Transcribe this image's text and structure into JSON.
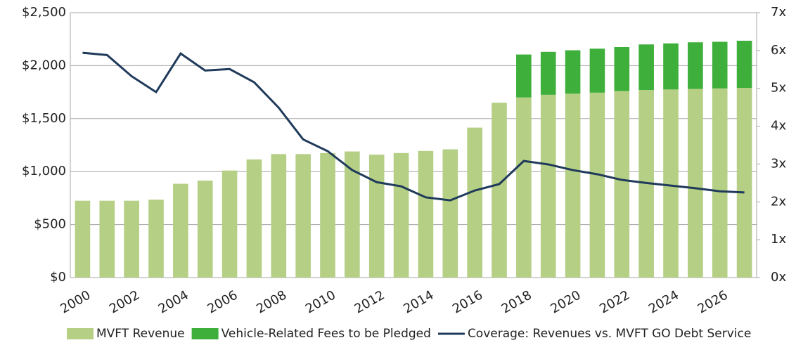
{
  "chart_data": {
    "type": "bar",
    "categories": [
      "2000",
      null,
      "2002",
      null,
      "2004",
      null,
      "2006",
      null,
      "2008",
      null,
      "2010",
      null,
      "2012",
      null,
      "2014",
      null,
      "2016",
      null,
      "2018",
      null,
      "2020",
      null,
      "2022",
      null,
      "2024",
      null,
      "2026",
      null
    ],
    "series": [
      {
        "name": "MVFT Revenue",
        "color": "#b5cf85",
        "type": "bar",
        "stack": true,
        "values": [
          725,
          725,
          725,
          735,
          885,
          915,
          1010,
          1115,
          1165,
          1165,
          1175,
          1190,
          1160,
          1175,
          1195,
          1210,
          1415,
          1650,
          1700,
          1725,
          1735,
          1745,
          1760,
          1770,
          1775,
          1780,
          1785,
          1790
        ]
      },
      {
        "name": "Vehicle-Related Fees to be Pledged",
        "color": "#3daf3a",
        "type": "bar",
        "stack": true,
        "values": [
          null,
          null,
          null,
          null,
          null,
          null,
          null,
          null,
          null,
          null,
          null,
          null,
          null,
          null,
          null,
          null,
          null,
          null,
          405,
          405,
          410,
          415,
          415,
          430,
          435,
          440,
          440,
          445
        ]
      },
      {
        "name": "Coverage: Revenues vs. MVFT GO Debt Service",
        "color": "#1f3a5a",
        "type": "line",
        "axis": "y2",
        "values": [
          5.94,
          5.88,
          5.32,
          4.9,
          5.92,
          5.47,
          5.51,
          5.16,
          4.49,
          3.65,
          3.34,
          2.84,
          2.52,
          2.41,
          2.12,
          2.04,
          2.3,
          2.47,
          3.08,
          2.99,
          2.84,
          2.73,
          2.58,
          2.5,
          2.43,
          2.36,
          2.28,
          2.25
        ]
      }
    ],
    "ylim": [
      0,
      2500
    ],
    "yticks": [
      {
        "value": 0,
        "label": "$0"
      },
      {
        "value": 500,
        "label": "$500"
      },
      {
        "value": 1000,
        "label": "$1,000"
      },
      {
        "value": 1500,
        "label": "$1,500"
      },
      {
        "value": 2000,
        "label": "$2,000"
      },
      {
        "value": 2500,
        "label": "$2,500"
      }
    ],
    "y2lim": [
      0,
      7
    ],
    "y2ticks": [
      {
        "value": 0,
        "label": "0x"
      },
      {
        "value": 1,
        "label": "1x"
      },
      {
        "value": 2,
        "label": "2x"
      },
      {
        "value": 3,
        "label": "3x"
      },
      {
        "value": 4,
        "label": "4x"
      },
      {
        "value": 5,
        "label": "5x"
      },
      {
        "value": 6,
        "label": "6x"
      },
      {
        "value": 7,
        "label": "7x"
      }
    ],
    "grid": true,
    "legend": "bottom"
  }
}
